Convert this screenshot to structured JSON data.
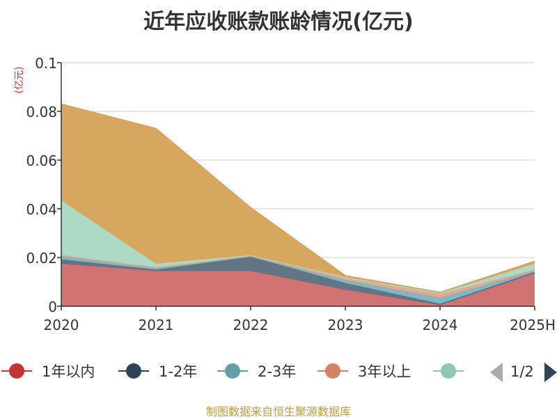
{
  "chart_data": {
    "type": "area",
    "title": "近年应收账款账龄情况(亿元)",
    "ylabel": "(亿元)",
    "xlabel": "",
    "categories": [
      "2020",
      "2021",
      "2022",
      "2023",
      "2024",
      "2025H"
    ],
    "ylim": [
      0,
      0.1
    ],
    "yticks": [
      "0",
      "0.02",
      "0.04",
      "0.06",
      "0.08",
      "0.1"
    ],
    "stacked": true,
    "grid": true,
    "legend_position": "bottom",
    "series": [
      {
        "name": "1年以内",
        "color": "#d06b6b",
        "marker_color": "#c23531",
        "values": [
          0.0175,
          0.0145,
          0.0145,
          0.0068,
          0.0005,
          0.0135
        ]
      },
      {
        "name": "1-2年",
        "color": "#5b6e7e",
        "marker_color": "#2f4554",
        "values": [
          0.0017,
          0.0005,
          0.0058,
          0.0027,
          0.0005,
          0.0005
        ]
      },
      {
        "name": "2-3年",
        "color": "#7ab3bf",
        "marker_color": "#61a0a8",
        "values": [
          0.0013,
          0.0005,
          0.0002,
          0.0012,
          0.0025,
          0.0005
        ]
      },
      {
        "name": "3年以上",
        "color": "#e5a48a",
        "marker_color": "#d48265",
        "values": [
          0.0005,
          0.0005,
          0.0002,
          0.0008,
          0.0015,
          0.0005
        ]
      },
      {
        "name": "",
        "color": "#a8d8c1",
        "marker_color": "#91c7ae",
        "values": [
          0.0225,
          0.0015,
          0.0003,
          0.0005,
          0.0005,
          0.0025
        ]
      },
      {
        "name": "",
        "color": "#d6a256",
        "marker_color": "#d6a256",
        "values": [
          0.0395,
          0.0555,
          0.0195,
          0.0006,
          0.0002,
          0.001
        ]
      }
    ],
    "legend_page": "1/2"
  },
  "source": "制图数据来自恒生聚源数据库",
  "colors": {
    "axis": "#333333",
    "grid": "#cccccc",
    "ylabel": "#e03030",
    "pager_active": "#2f4554",
    "pager_inactive": "#aaaaaa"
  }
}
